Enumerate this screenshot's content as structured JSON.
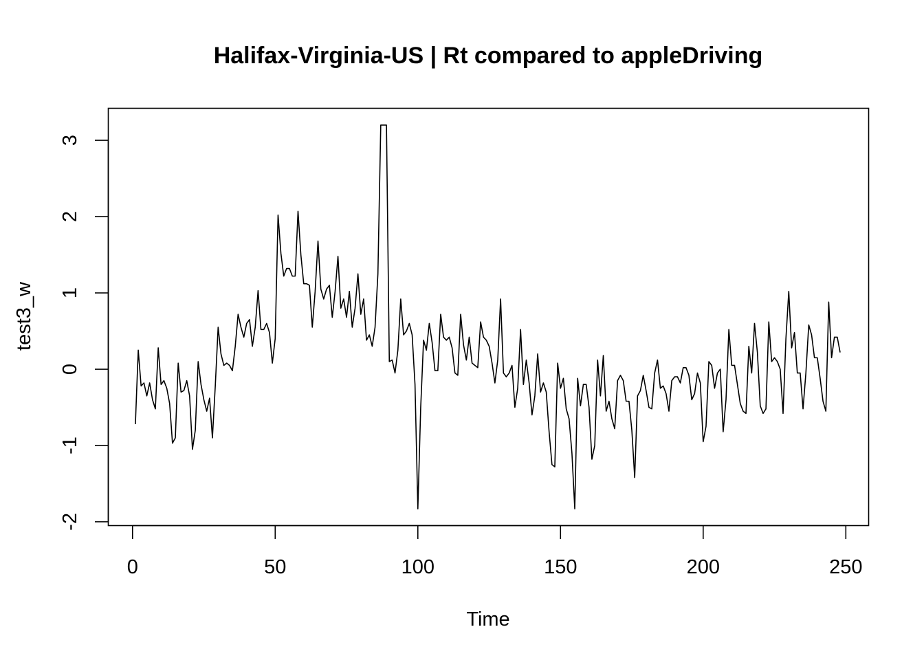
{
  "chart_data": {
    "type": "line",
    "title": "Halifax-Virginia-US | Rt compared to appleDriving",
    "xlabel": "Time",
    "ylabel": "test3_w",
    "xlim": [
      -8.5,
      258
    ],
    "ylim": [
      -2.05,
      3.42
    ],
    "xticks": [
      0,
      50,
      100,
      150,
      200,
      250
    ],
    "yticks": [
      -2,
      -1,
      0,
      1,
      2,
      3
    ],
    "grid": false,
    "series": [
      {
        "x_start": 1,
        "x_step": 1,
        "values": [
          -0.72,
          0.25,
          -0.22,
          -0.18,
          -0.35,
          -0.18,
          -0.4,
          -0.52,
          0.28,
          -0.2,
          -0.15,
          -0.25,
          -0.45,
          -0.97,
          -0.9,
          0.08,
          -0.3,
          -0.28,
          -0.15,
          -0.35,
          -1.05,
          -0.8,
          0.1,
          -0.2,
          -0.4,
          -0.55,
          -0.38,
          -0.9,
          -0.22,
          0.55,
          0.2,
          0.05,
          0.08,
          0.05,
          -0.02,
          0.3,
          0.72,
          0.55,
          0.42,
          0.6,
          0.65,
          0.3,
          0.55,
          1.03,
          0.52,
          0.52,
          0.6,
          0.48,
          0.08,
          0.4,
          2.02,
          1.52,
          1.22,
          1.32,
          1.32,
          1.22,
          1.22,
          2.07,
          1.5,
          1.12,
          1.12,
          1.1,
          0.55,
          1.02,
          1.68,
          1.05,
          0.92,
          1.05,
          1.1,
          0.68,
          1.02,
          1.48,
          0.8,
          0.92,
          0.68,
          1.02,
          0.55,
          0.8,
          1.25,
          0.72,
          0.92,
          0.38,
          0.45,
          0.3,
          0.55,
          1.25,
          3.2,
          3.2,
          3.2,
          0.1,
          0.12,
          -0.05,
          0.25,
          0.92,
          0.45,
          0.5,
          0.6,
          0.45,
          -0.2,
          -1.83,
          -0.5,
          0.38,
          0.25,
          0.6,
          0.35,
          -0.02,
          -0.02,
          0.72,
          0.42,
          0.38,
          0.42,
          0.28,
          -0.05,
          -0.08,
          0.72,
          0.32,
          0.12,
          0.42,
          0.08,
          0.05,
          0.02,
          0.62,
          0.42,
          0.38,
          0.3,
          0.08,
          -0.18,
          0.12,
          0.92,
          -0.05,
          -0.1,
          -0.05,
          0.05,
          -0.5,
          -0.25,
          0.52,
          -0.2,
          0.12,
          -0.18,
          -0.6,
          -0.35,
          0.2,
          -0.3,
          -0.18,
          -0.3,
          -0.82,
          -1.25,
          -1.28,
          0.08,
          -0.25,
          -0.12,
          -0.52,
          -0.65,
          -1.1,
          -1.83,
          -0.12,
          -0.48,
          -0.2,
          -0.2,
          -0.5,
          -1.18,
          -1.0,
          0.12,
          -0.35,
          0.18,
          -0.55,
          -0.42,
          -0.65,
          -0.78,
          -0.15,
          -0.08,
          -0.15,
          -0.42,
          -0.42,
          -0.8,
          -1.42,
          -0.35,
          -0.28,
          -0.08,
          -0.28,
          -0.5,
          -0.52,
          -0.05,
          0.12,
          -0.25,
          -0.22,
          -0.32,
          -0.55,
          -0.15,
          -0.1,
          -0.1,
          -0.18,
          0.02,
          0.02,
          -0.08,
          -0.4,
          -0.32,
          -0.05,
          -0.18,
          -0.95,
          -0.75,
          0.1,
          0.05,
          -0.25,
          -0.05,
          0.0,
          -0.82,
          -0.4,
          0.52,
          0.05,
          0.05,
          -0.2,
          -0.45,
          -0.55,
          -0.58,
          0.3,
          -0.05,
          0.6,
          0.22,
          -0.48,
          -0.58,
          -0.52,
          0.62,
          0.1,
          0.15,
          0.1,
          0.0,
          -0.58,
          0.4,
          1.02,
          0.28,
          0.48,
          -0.05,
          -0.05,
          -0.52,
          -0.05,
          0.58,
          0.45,
          0.15,
          0.15,
          -0.12,
          -0.42,
          -0.55,
          0.88,
          0.15,
          0.42,
          0.42,
          0.22
        ]
      }
    ]
  }
}
